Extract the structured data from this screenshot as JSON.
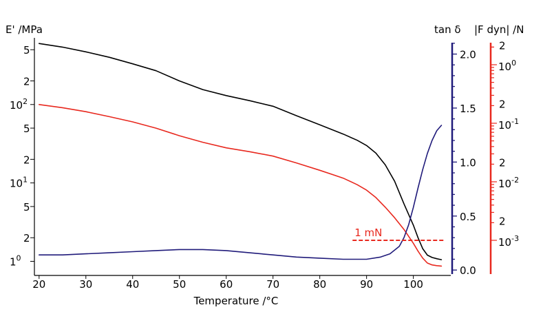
{
  "chart_data": {
    "type": "line",
    "xlabel": "Temperature /°C",
    "xlim": [
      19,
      108
    ],
    "x_ticks": [
      "20",
      "30",
      "40",
      "50",
      "60",
      "70",
      "80",
      "90",
      "100"
    ],
    "left_axis": {
      "title": "E' /MPa",
      "scale": "log",
      "ylim_log10": [
        -0.18,
        2.85
      ],
      "ticks": [
        {
          "value": 1,
          "label": "1",
          "sup": "0"
        },
        {
          "value": 2,
          "label": "2",
          "sup": ""
        },
        {
          "value": 5,
          "label": "5",
          "sup": ""
        },
        {
          "value": 10,
          "label": "10",
          "sup": "1"
        },
        {
          "value": 20,
          "label": "2",
          "sup": ""
        },
        {
          "value": 50,
          "label": "5",
          "sup": ""
        },
        {
          "value": 100,
          "label": "10",
          "sup": "2"
        },
        {
          "value": 200,
          "label": "2",
          "sup": ""
        },
        {
          "value": 500,
          "label": "5",
          "sup": ""
        }
      ]
    },
    "tan_axis": {
      "title": "tan δ",
      "ylim": [
        -0.05,
        2.15
      ],
      "ticks": [
        "0.0",
        "0.5",
        "1.0",
        "1.5",
        "2.0"
      ],
      "color": "#1f1a7a"
    },
    "force_axis": {
      "title": "|F dyn| /N",
      "scale": "log",
      "color": "#e8281e",
      "ticks": [
        {
          "value": 0.001,
          "label": "10",
          "sup": "-3"
        },
        {
          "value": 0.002,
          "label": "2",
          "sup": ""
        },
        {
          "value": 0.01,
          "label": "10",
          "sup": "-2"
        },
        {
          "value": 0.02,
          "label": "2",
          "sup": ""
        },
        {
          "value": 0.1,
          "label": "10",
          "sup": "-1"
        },
        {
          "value": 0.2,
          "label": "2",
          "sup": ""
        },
        {
          "value": 1,
          "label": "10",
          "sup": "0"
        },
        {
          "value": 2,
          "label": "2",
          "sup": ""
        }
      ]
    },
    "series": [
      {
        "color": "#000000",
        "axis": "left",
        "x": [
          20,
          25,
          30,
          35,
          40,
          45,
          50,
          55,
          60,
          65,
          70,
          75,
          80,
          85,
          88,
          90,
          92,
          94,
          96,
          98,
          100,
          101,
          102,
          103,
          104,
          105,
          106
        ],
        "y": [
          600,
          540,
          470,
          400,
          330,
          270,
          200,
          155,
          130,
          112,
          95,
          72,
          55,
          42,
          35,
          30,
          24,
          17,
          10.5,
          5.4,
          2.9,
          2.0,
          1.45,
          1.2,
          1.12,
          1.08,
          1.05
        ]
      },
      {
        "color": "#e8281e",
        "axis": "left",
        "x": [
          20,
          25,
          30,
          35,
          40,
          45,
          50,
          55,
          60,
          65,
          70,
          75,
          80,
          85,
          88,
          90,
          92,
          94,
          96,
          98,
          100,
          101,
          102,
          103,
          104,
          105,
          106
        ],
        "y": [
          100,
          91,
          81,
          70,
          60,
          50,
          40,
          33,
          28,
          25,
          22,
          18,
          14.5,
          11.5,
          9.5,
          8.1,
          6.5,
          4.9,
          3.6,
          2.55,
          1.7,
          1.35,
          1.1,
          0.95,
          0.9,
          0.88,
          0.87
        ]
      },
      {
        "color": "#1f1a7a",
        "axis": "tan",
        "x": [
          20,
          25,
          30,
          35,
          40,
          45,
          50,
          55,
          60,
          65,
          70,
          75,
          80,
          85,
          90,
          93,
          95,
          97,
          98,
          99,
          100,
          101,
          102,
          103,
          104,
          105,
          106
        ],
        "y": [
          0.14,
          0.14,
          0.15,
          0.16,
          0.17,
          0.18,
          0.19,
          0.19,
          0.18,
          0.16,
          0.14,
          0.12,
          0.11,
          0.1,
          0.1,
          0.12,
          0.15,
          0.22,
          0.3,
          0.42,
          0.58,
          0.76,
          0.93,
          1.08,
          1.2,
          1.29,
          1.34
        ]
      }
    ],
    "annotations": [
      {
        "text": "1 mN",
        "x_start": 87,
        "x_end": 106.5,
        "force_value": 0.001,
        "color": "#e8281e",
        "style": "dashed"
      }
    ]
  }
}
